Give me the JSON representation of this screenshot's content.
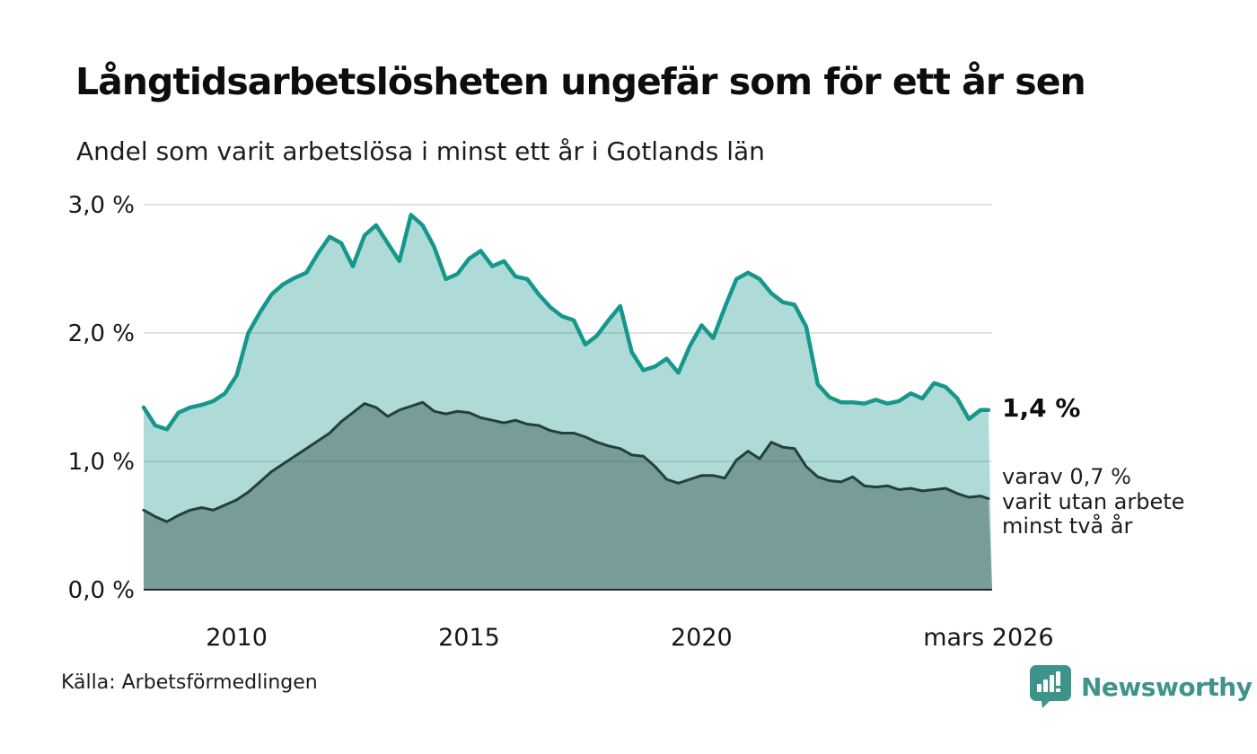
{
  "header": {
    "title": "Långtidsarbetslösheten ungefär som för ett år sen",
    "subtitle": "Andel som varit arbetslösa i minst ett år i Gotlands län"
  },
  "annotations": {
    "latest_value": "1,4 %",
    "secondary": "varav 0,7 %\nvarit utan arbete\nminst två år"
  },
  "footer": {
    "source": "Källa: Arbetsförmedlingen",
    "brand": "Newsworthy",
    "brand_icon": "newsworthy-speech-bubble-bar-chart-icon"
  },
  "colors": {
    "background": "#ffffff",
    "title_text": "#0d0d0d",
    "body_text": "#1d1d1d",
    "gridline": "#d9d9d9",
    "axis_line": "#2b2b2b",
    "brand_teal": "#3e948b",
    "series_one_year_line": "#16978c",
    "series_one_year_fill": "rgba(22,151,140,0.35)",
    "series_two_year_line": "#253f3d",
    "series_two_year_fill": "rgba(37,63,61,0.40)"
  },
  "chart_data": {
    "type": "area",
    "title": "Långtidsarbetslösheten ungefär som för ett år sen",
    "subtitle": "Andel som varit arbetslösa i minst ett år i Gotlands län",
    "unit": "%",
    "grid": true,
    "legend": "end-of-line-labels",
    "xlim": [
      2008.0,
      2026.25
    ],
    "ylim": [
      0,
      3.0
    ],
    "xticks": [
      {
        "label": "2010",
        "value": 2010
      },
      {
        "label": "2015",
        "value": 2015
      },
      {
        "label": "2020",
        "value": 2020
      },
      {
        "label": "mars 2026",
        "value": 2026.17
      }
    ],
    "yticks": [
      {
        "label": "3,0 %",
        "value": 3.0
      },
      {
        "label": "2,0 %",
        "value": 2.0
      },
      {
        "label": "1,0 %",
        "value": 1.0
      },
      {
        "label": "0,0 %",
        "value": 0.0
      }
    ],
    "x": [
      2008.0,
      2008.25,
      2008.5,
      2008.75,
      2009.0,
      2009.25,
      2009.5,
      2009.75,
      2010.0,
      2010.25,
      2010.5,
      2010.75,
      2011.0,
      2011.25,
      2011.5,
      2011.75,
      2012.0,
      2012.25,
      2012.5,
      2012.75,
      2013.0,
      2013.25,
      2013.5,
      2013.75,
      2014.0,
      2014.25,
      2014.5,
      2014.75,
      2015.0,
      2015.25,
      2015.5,
      2015.75,
      2016.0,
      2016.25,
      2016.5,
      2016.75,
      2017.0,
      2017.25,
      2017.5,
      2017.75,
      2018.0,
      2018.25,
      2018.5,
      2018.75,
      2019.0,
      2019.25,
      2019.5,
      2019.75,
      2020.0,
      2020.25,
      2020.5,
      2020.75,
      2021.0,
      2021.25,
      2021.5,
      2021.75,
      2022.0,
      2022.25,
      2022.5,
      2022.75,
      2023.0,
      2023.25,
      2023.5,
      2023.75,
      2024.0,
      2024.25,
      2024.5,
      2024.75,
      2025.0,
      2025.25,
      2025.5,
      2025.75,
      2026.0,
      2026.17
    ],
    "series": [
      {
        "name": "Andel arbetslösa minst ett år",
        "end_label": "1,4 %",
        "values": [
          1.42,
          1.28,
          1.25,
          1.38,
          1.42,
          1.44,
          1.47,
          1.53,
          1.67,
          2.0,
          2.16,
          2.3,
          2.38,
          2.43,
          2.47,
          2.62,
          2.75,
          2.7,
          2.52,
          2.76,
          2.84,
          2.7,
          2.56,
          2.92,
          2.84,
          2.67,
          2.42,
          2.46,
          2.58,
          2.64,
          2.52,
          2.56,
          2.44,
          2.42,
          2.3,
          2.2,
          2.13,
          2.1,
          1.91,
          1.98,
          2.1,
          2.21,
          1.85,
          1.71,
          1.74,
          1.8,
          1.69,
          1.9,
          2.06,
          1.96,
          2.2,
          2.42,
          2.47,
          2.42,
          2.31,
          2.24,
          2.22,
          2.05,
          1.6,
          1.5,
          1.46,
          1.46,
          1.45,
          1.48,
          1.45,
          1.47,
          1.53,
          1.49,
          1.61,
          1.58,
          1.49,
          1.33,
          1.4,
          1.4
        ]
      },
      {
        "name": "Andel arbetslösa minst två år",
        "end_label": "0,7 %",
        "values": [
          0.62,
          0.57,
          0.53,
          0.58,
          0.62,
          0.64,
          0.62,
          0.66,
          0.7,
          0.76,
          0.84,
          0.92,
          0.98,
          1.04,
          1.1,
          1.16,
          1.22,
          1.31,
          1.38,
          1.45,
          1.42,
          1.35,
          1.4,
          1.43,
          1.46,
          1.39,
          1.37,
          1.39,
          1.38,
          1.34,
          1.32,
          1.3,
          1.32,
          1.29,
          1.28,
          1.24,
          1.22,
          1.22,
          1.19,
          1.15,
          1.12,
          1.1,
          1.05,
          1.04,
          0.96,
          0.86,
          0.83,
          0.86,
          0.89,
          0.89,
          0.87,
          1.01,
          1.08,
          1.02,
          1.15,
          1.11,
          1.1,
          0.96,
          0.88,
          0.85,
          0.84,
          0.88,
          0.81,
          0.8,
          0.81,
          0.78,
          0.79,
          0.77,
          0.78,
          0.79,
          0.75,
          0.72,
          0.73,
          0.71
        ]
      }
    ]
  }
}
